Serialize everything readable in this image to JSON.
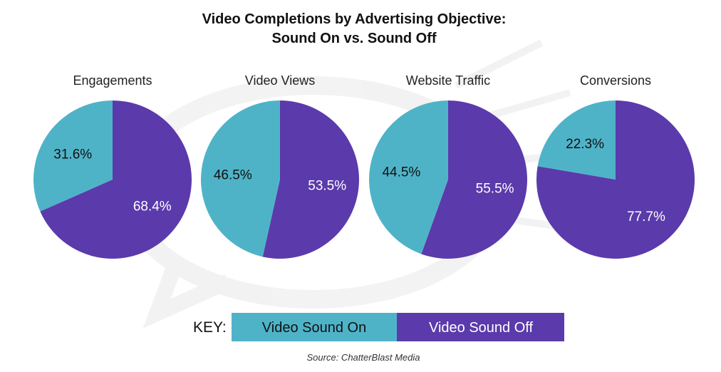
{
  "chart_data": {
    "type": "pie",
    "title": "Video Completions by Advertising Objective:",
    "subtitle": "Sound On vs. Sound Off",
    "series_colors": {
      "Video Sound On": "#4fb3c8",
      "Video Sound Off": "#5b3aab"
    },
    "pies": [
      {
        "name": "Engagements",
        "slices": [
          {
            "label": "Video Sound On",
            "value": 31.6,
            "display": "31.6%"
          },
          {
            "label": "Video Sound Off",
            "value": 68.4,
            "display": "68.4%"
          }
        ]
      },
      {
        "name": "Video Views",
        "slices": [
          {
            "label": "Video Sound On",
            "value": 46.5,
            "display": "46.5%"
          },
          {
            "label": "Video Sound Off",
            "value": 53.5,
            "display": "53.5%"
          }
        ]
      },
      {
        "name": "Website Traffic",
        "slices": [
          {
            "label": "Video Sound On",
            "value": 44.5,
            "display": "44.5%"
          },
          {
            "label": "Video Sound Off",
            "value": 55.5,
            "display": "55.5%"
          }
        ]
      },
      {
        "name": "Conversions",
        "slices": [
          {
            "label": "Video Sound On",
            "value": 22.3,
            "display": "22.3%"
          },
          {
            "label": "Video Sound Off",
            "value": 77.7,
            "display": "77.7%"
          }
        ]
      }
    ],
    "legend": {
      "prefix": "KEY:",
      "entries": [
        "Video Sound On",
        "Video Sound Off"
      ],
      "placement": "bottom"
    },
    "source": "Source: ChatterBlast Media"
  }
}
